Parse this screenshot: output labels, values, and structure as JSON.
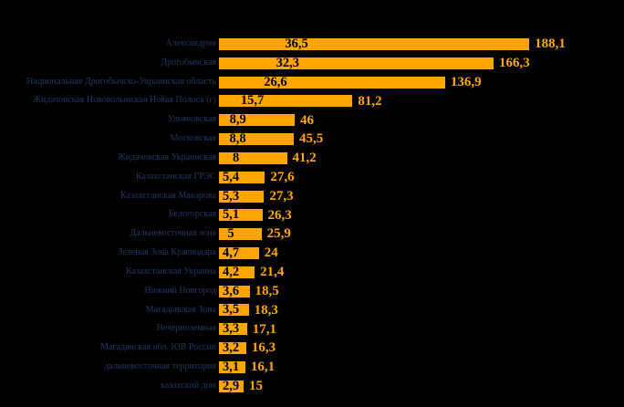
{
  "page": {
    "background": "#000000"
  },
  "colors": {
    "bar_fill": "#FFA500",
    "inside_value_text": "#000000",
    "outside_value_text": "#FFA500",
    "category_label_text": "#1F3864"
  },
  "chart_data": {
    "type": "bar",
    "orientation": "horizontal",
    "title": "",
    "xlabel": "",
    "ylabel": "",
    "legend_position": "none",
    "grid": false,
    "axes_visible": false,
    "value_decimal_separator": ",",
    "inner_to_outer_ratio": 5.15,
    "categories": [
      "Александрия",
      "Дрогобычская",
      "Национальная Дрогобычско-Украинская область",
      "Жидачовская Нововолынская Новая Полоса (г)",
      "Ульяновская",
      "Московская",
      "Жидачовская Украинская",
      "Казахстанская ГРЭС",
      "Казахстанская Макарова",
      "Белогорская",
      "Дальневосточная зона",
      "Зеленая Зона Краснодара",
      "Казахстанская Украина",
      "Нижний Новгород",
      "Магаданская Зона",
      "Нечерноземная",
      "Магаданская обл. ЮВ России",
      "дальневосточная территория",
      "казахский дом"
    ],
    "series": [
      {
        "name": "inner-value",
        "placement": "inside-bar",
        "values": [
          36.5,
          32.3,
          26.6,
          15.7,
          8.9,
          8.8,
          8,
          5.4,
          5.3,
          5.1,
          5,
          4.7,
          4.2,
          3.6,
          3.5,
          3.3,
          3.2,
          3.1,
          2.9
        ]
      },
      {
        "name": "outer-value",
        "placement": "after-bar",
        "values": [
          188.1,
          166.3,
          136.9,
          81.2,
          46,
          45.5,
          41.2,
          27.6,
          27.3,
          26.3,
          25.9,
          24,
          21.4,
          18.5,
          18.3,
          17.1,
          16.3,
          16.1,
          15
        ]
      }
    ],
    "inner_value_labels": [
      "36,5",
      "32,3",
      "26,6",
      "15,7",
      "8,9",
      "8,8",
      "8",
      "5,4",
      "5,3",
      "5,1",
      "5",
      "4,7",
      "4,2",
      "3,6",
      "3,5",
      "3,3",
      "3,2",
      "3,1",
      "2,9"
    ],
    "outer_value_labels": [
      "188,1",
      "166,3",
      "136,9",
      "81,2",
      "46",
      "45,5",
      "41,2",
      "27,6",
      "27,3",
      "26,3",
      "25,9",
      "24",
      "21,4",
      "18,5",
      "18,3",
      "17,1",
      "16,3",
      "16,1",
      "15"
    ],
    "xlim": [
      0,
      40
    ]
  }
}
